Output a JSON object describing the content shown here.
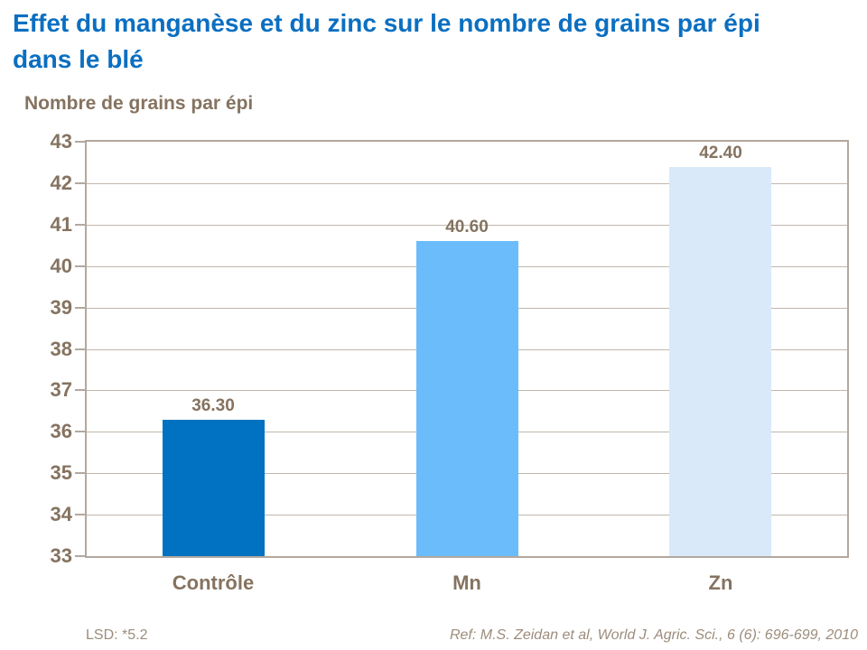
{
  "title": "Effet du manganèse et du zinc sur le nombre de grains par épi dans le blé",
  "y_axis_title": "Nombre de grains par épi",
  "footer": {
    "lsd": "LSD: *5.2",
    "ref": "Ref: M.S. Zeidan et al, World J. Agric. Sci., 6 (6): 696-699, 2010"
  },
  "colors": {
    "title_text": "#0B6FC1",
    "chart_text": "#857360",
    "footer_text": "#9C8D7C",
    "frame": "#B3A89E",
    "gridline": "#C1B7AD"
  },
  "chart_data": {
    "type": "bar",
    "title": "Effet du manganèse et du zinc sur le nombre de grains par épi dans le blé",
    "ylabel": "Nombre de grains par épi",
    "xlabel": "",
    "categories": [
      "Contrôle",
      "Mn",
      "Zn"
    ],
    "values": [
      36.3,
      40.6,
      42.4
    ],
    "value_labels": [
      "36.30",
      "40.60",
      "42.40"
    ],
    "bar_colors": [
      "#0072C1",
      "#6BBCFA",
      "#D9E9F9"
    ],
    "ylim": [
      33,
      43
    ],
    "ytick_step": 1,
    "grid": true,
    "legend": false,
    "annotations": [
      "LSD: *5.2",
      "Ref: M.S. Zeidan et al, World J. Agric. Sci., 6 (6): 696-699, 2010"
    ]
  }
}
